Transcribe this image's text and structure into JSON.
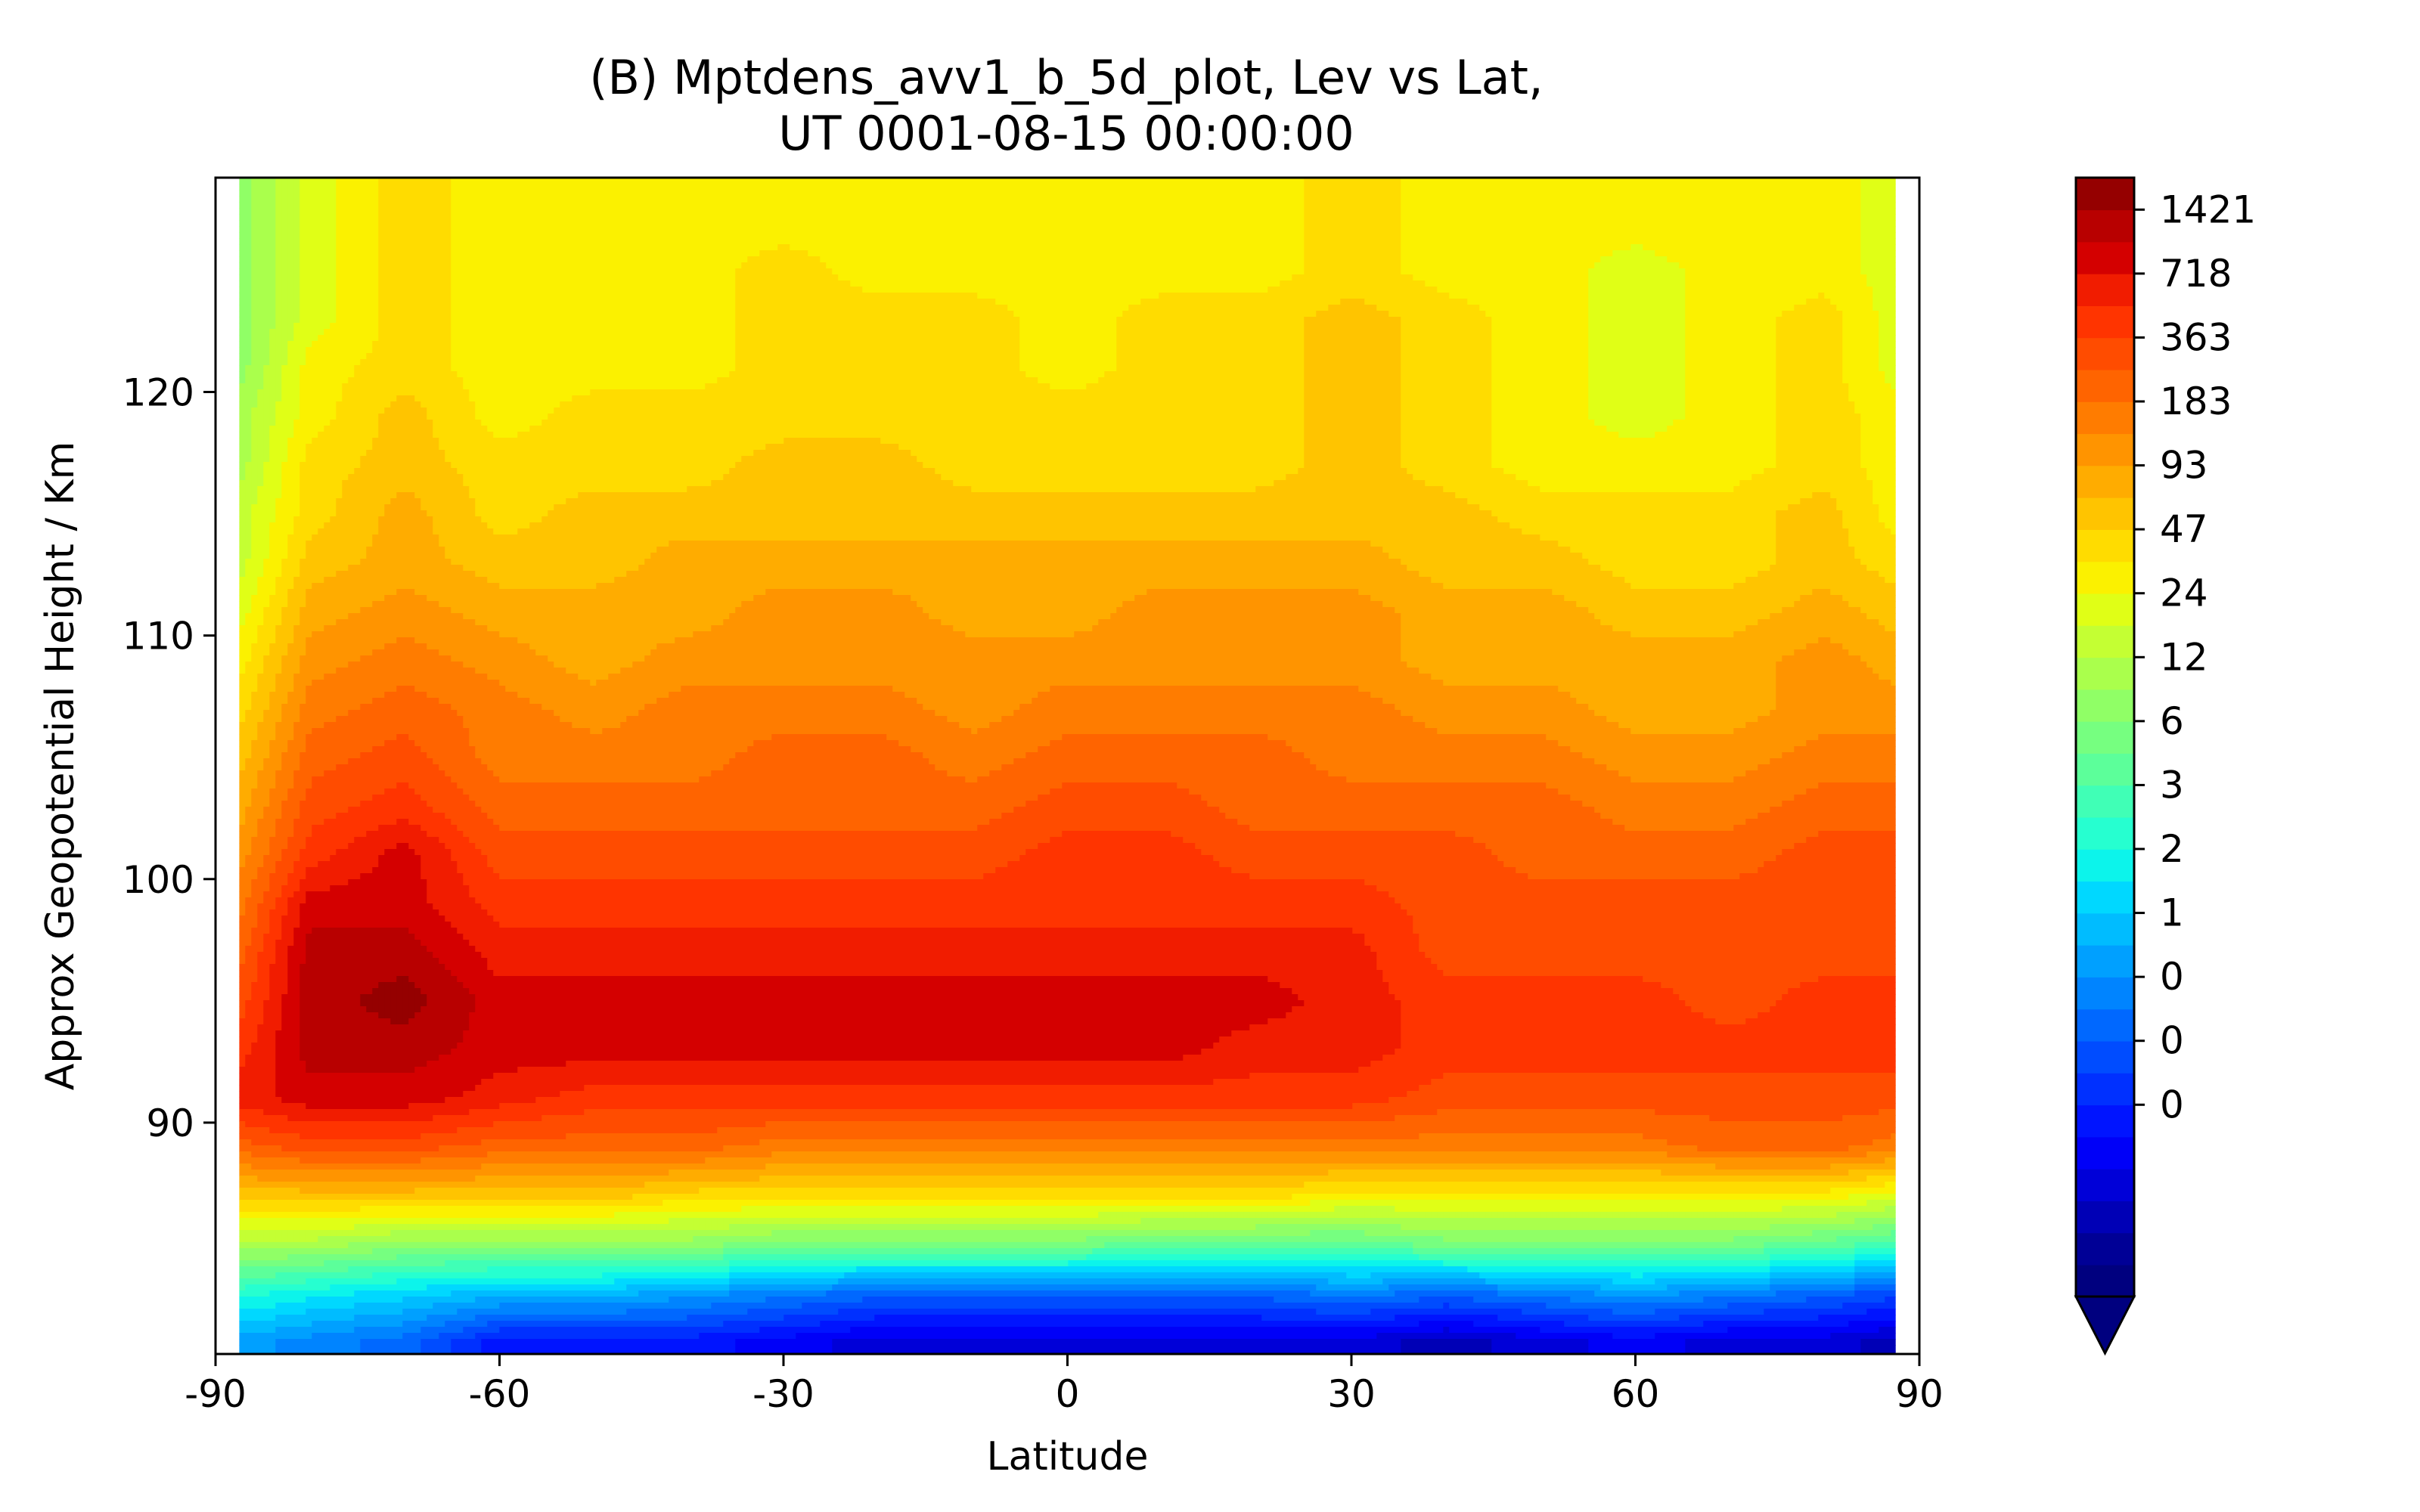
{
  "chart_data": {
    "type": "contour",
    "title": [
      "(B) Mptdens_avv1_b_5d_plot, Lev vs Lat,",
      "UT 0001-08-15 00:00:00"
    ],
    "xlabel": "Latitude",
    "ylabel": "Approx Geopotential Height / Km",
    "xlim": [
      -90,
      90
    ],
    "ylim": [
      80.5,
      128.8
    ],
    "xticks": [
      -90,
      -60,
      -30,
      0,
      30,
      60,
      90
    ],
    "xtick_labels": [
      "-90",
      "-60",
      "-30",
      "0",
      "30",
      "60",
      "90"
    ],
    "yticks": [
      90,
      100,
      110,
      120
    ],
    "ytick_labels": [
      "90",
      "100",
      "110",
      "120"
    ],
    "data_lat_range": [
      -87.5,
      87.5
    ],
    "colorbar": {
      "tick_labels": [
        "1421",
        "718",
        "363",
        "183",
        "93",
        "47",
        "24",
        "12",
        "6",
        "3",
        "2",
        "1",
        "0",
        "0",
        "0"
      ],
      "extend": "min",
      "colors": [
        "#00007f",
        "#000096",
        "#0000b6",
        "#0000d8",
        "#0000f8",
        "#0014ff",
        "#0030ff",
        "#004cff",
        "#0068ff",
        "#0084ff",
        "#00a0ff",
        "#00bcff",
        "#00d8ff",
        "#0cf4eb",
        "#26ffd0",
        "#40ffb6",
        "#5cff9a",
        "#76ff80",
        "#90ff66",
        "#aaff4c",
        "#c4ff33",
        "#e0ff16",
        "#fbf100",
        "#ffdc00",
        "#ffc400",
        "#ffac00",
        "#ff9400",
        "#ff7c00",
        "#ff6400",
        "#ff4c00",
        "#ff3400",
        "#f11c00",
        "#d40000",
        "#b80000",
        "#950000"
      ]
    },
    "contour_field": {
      "lat": [
        -87.5,
        -80,
        -70,
        -60,
        -50,
        -40,
        -30,
        -20,
        -10,
        0,
        10,
        20,
        30,
        40,
        50,
        60,
        70,
        80,
        87.5
      ],
      "height": [
        81,
        83,
        85,
        87,
        89,
        91,
        93,
        95,
        97,
        99,
        101,
        103,
        105,
        107,
        109,
        111,
        113,
        115,
        117,
        119,
        121,
        123,
        125,
        127,
        129
      ],
      "level_index": [
        [
          10,
          9,
          8,
          5,
          5,
          5,
          4,
          3,
          3,
          3,
          3,
          3,
          3,
          2,
          3,
          4,
          3,
          3,
          2
        ],
        [
          14,
          13,
          12,
          11,
          11,
          10,
          9,
          8,
          8,
          8,
          8,
          8,
          9,
          8,
          9,
          10,
          9,
          8,
          7
        ],
        [
          19,
          19,
          18,
          18,
          18,
          18,
          17,
          17,
          17,
          17,
          16,
          16,
          16,
          17,
          17,
          17,
          17,
          16,
          15
        ],
        [
          24,
          24,
          24,
          24,
          24,
          23,
          23,
          23,
          23,
          23,
          23,
          23,
          22,
          22,
          22,
          22,
          22,
          22,
          21
        ],
        [
          28,
          29,
          29,
          28,
          28,
          28,
          27,
          27,
          27,
          27,
          27,
          27,
          27,
          27,
          27,
          27,
          28,
          28,
          27
        ],
        [
          31,
          32,
          32,
          31,
          30,
          30,
          30,
          30,
          30,
          30,
          30,
          30,
          30,
          29,
          29,
          29,
          29,
          29,
          29
        ],
        [
          30,
          33,
          33,
          32,
          32,
          32,
          32,
          32,
          32,
          32,
          32,
          31,
          31,
          30,
          30,
          30,
          30,
          30,
          30
        ],
        [
          29,
          33,
          34,
          32,
          32,
          32,
          32,
          32,
          32,
          32,
          32,
          32,
          31,
          30,
          30,
          30,
          29,
          30,
          30
        ],
        [
          28,
          33,
          33,
          31,
          31,
          31,
          31,
          31,
          31,
          31,
          31,
          31,
          31,
          29,
          29,
          29,
          29,
          29,
          29
        ],
        [
          27,
          32,
          32,
          30,
          30,
          30,
          30,
          30,
          30,
          30,
          30,
          30,
          30,
          29,
          29,
          29,
          29,
          29,
          29
        ],
        [
          26,
          30,
          32,
          29,
          29,
          29,
          29,
          29,
          29,
          30,
          30,
          29,
          29,
          29,
          28,
          28,
          28,
          29,
          29
        ],
        [
          25,
          29,
          30,
          28,
          28,
          28,
          28,
          28,
          28,
          29,
          29,
          28,
          28,
          28,
          28,
          27,
          27,
          28,
          28
        ],
        [
          24,
          28,
          29,
          27,
          27,
          27,
          28,
          28,
          27,
          28,
          28,
          28,
          27,
          27,
          27,
          26,
          26,
          27,
          27
        ],
        [
          23,
          27,
          28,
          27,
          26,
          27,
          27,
          27,
          26,
          27,
          27,
          27,
          27,
          26,
          26,
          25,
          25,
          26,
          26
        ],
        [
          22,
          26,
          27,
          26,
          25,
          26,
          26,
          26,
          26,
          26,
          26,
          26,
          26,
          25,
          25,
          25,
          25,
          26,
          25
        ],
        [
          21,
          25,
          26,
          25,
          25,
          25,
          26,
          26,
          25,
          25,
          26,
          26,
          26,
          25,
          25,
          24,
          24,
          25,
          24
        ],
        [
          20,
          24,
          25,
          24,
          24,
          25,
          25,
          25,
          25,
          25,
          25,
          25,
          25,
          24,
          24,
          23,
          23,
          24,
          23
        ],
        [
          20,
          23,
          25,
          23,
          24,
          24,
          24,
          24,
          24,
          24,
          24,
          24,
          24,
          24,
          23,
          23,
          23,
          24,
          22
        ],
        [
          19,
          23,
          24,
          23,
          23,
          23,
          24,
          24,
          23,
          23,
          23,
          23,
          24,
          23,
          22,
          22,
          22,
          23,
          22
        ],
        [
          19,
          22,
          24,
          22,
          23,
          23,
          23,
          23,
          23,
          23,
          23,
          23,
          24,
          23,
          22,
          21,
          22,
          23,
          22
        ],
        [
          18,
          22,
          23,
          22,
          22,
          22,
          23,
          23,
          23,
          22,
          23,
          23,
          24,
          23,
          22,
          21,
          22,
          23,
          21
        ],
        [
          18,
          21,
          23,
          22,
          22,
          22,
          23,
          23,
          23,
          22,
          23,
          23,
          24,
          23,
          22,
          21,
          22,
          23,
          21
        ],
        [
          18,
          21,
          23,
          22,
          22,
          22,
          23,
          22,
          22,
          22,
          22,
          22,
          23,
          22,
          22,
          21,
          22,
          22,
          21
        ],
        [
          18,
          21,
          23,
          22,
          22,
          22,
          22,
          22,
          22,
          22,
          22,
          22,
          23,
          22,
          22,
          22,
          22,
          22,
          21
        ],
        [
          18,
          21,
          23,
          22,
          22,
          22,
          22,
          22,
          22,
          22,
          22,
          22,
          23,
          22,
          22,
          22,
          22,
          22,
          21
        ]
      ]
    }
  }
}
